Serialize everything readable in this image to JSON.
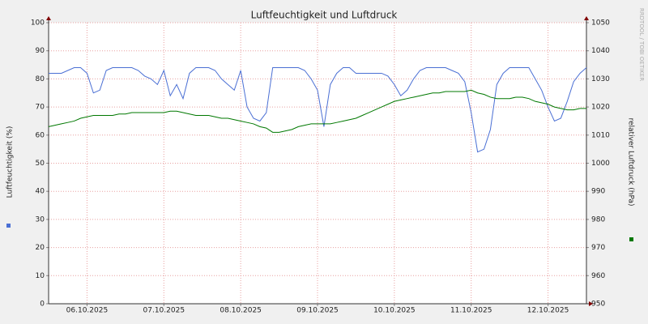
{
  "chart_data": {
    "type": "line",
    "title": "Luftfeuchtigkeit und Luftdruck",
    "y_label": "Luftfeuchtigkeit (%)",
    "y2_label": "relativer Luftdruck (hPa)",
    "watermark": "RRDTOOL / TOBI OETIKER",
    "x": [
      0,
      2,
      4,
      6,
      8,
      10,
      12,
      14,
      16,
      18,
      20,
      22,
      24,
      26,
      28,
      30,
      32,
      34,
      36,
      38,
      40,
      42,
      44,
      46,
      48,
      50,
      52,
      54,
      56,
      58,
      60,
      62,
      64,
      66,
      68,
      70,
      72,
      74,
      76,
      78,
      80,
      82,
      84,
      86,
      88,
      90,
      92,
      94,
      96,
      98,
      100,
      102,
      104,
      106,
      108,
      110,
      112,
      114,
      116,
      118,
      120,
      122,
      124,
      126,
      128,
      130,
      132,
      134,
      136,
      138,
      140,
      142,
      144,
      146,
      148,
      150,
      152,
      154,
      156,
      158,
      160,
      162,
      164,
      166,
      168
    ],
    "xlim": [
      0,
      168
    ],
    "xticks": [
      {
        "value": 12,
        "label": "06.10.2025"
      },
      {
        "value": 36,
        "label": "07.10.2025"
      },
      {
        "value": 60,
        "label": "08.10.2025"
      },
      {
        "value": 84,
        "label": "09.10.2025"
      },
      {
        "value": 108,
        "label": "10.10.2025"
      },
      {
        "value": 132,
        "label": "11.10.2025"
      },
      {
        "value": 156,
        "label": "12.10.2025"
      }
    ],
    "ylim": [
      0,
      100
    ],
    "yticks": [
      0,
      10,
      20,
      30,
      40,
      50,
      60,
      70,
      80,
      90,
      100
    ],
    "y2lim": [
      950,
      1050
    ],
    "y2ticks": [
      950,
      960,
      970,
      980,
      990,
      1000,
      1010,
      1020,
      1030,
      1040,
      1050
    ],
    "grid": true,
    "series": [
      {
        "color": "#4a6fd4",
        "values": [
          82,
          82,
          82,
          83,
          84,
          84,
          82,
          75,
          76,
          83,
          84,
          84,
          84,
          84,
          83,
          81,
          80,
          78,
          83,
          74,
          78,
          73,
          82,
          84,
          84,
          84,
          83,
          80,
          78,
          76,
          83,
          70,
          66,
          65,
          68,
          84,
          84,
          84,
          84,
          84,
          83,
          80,
          76,
          63,
          78,
          82,
          84,
          84,
          82,
          82,
          82,
          82,
          82,
          81,
          78,
          74,
          76,
          80,
          83,
          84,
          84,
          84,
          84,
          83,
          82,
          79,
          68,
          54,
          55,
          62,
          78,
          82,
          84,
          84,
          84,
          84,
          80,
          76,
          70,
          65,
          66,
          72,
          79,
          82,
          84
        ]
      },
      {
        "color": "#007800",
        "axis": "y2",
        "values": [
          1013,
          1013.5,
          1014,
          1014.5,
          1015,
          1016,
          1016.5,
          1017,
          1017,
          1017,
          1017,
          1017.5,
          1017.5,
          1018,
          1018,
          1018,
          1018,
          1018,
          1018,
          1018.5,
          1018.5,
          1018,
          1017.5,
          1017,
          1017,
          1017,
          1016.5,
          1016,
          1016,
          1015.5,
          1015,
          1014.5,
          1014,
          1013,
          1012.5,
          1011,
          1011,
          1011.5,
          1012,
          1013,
          1013.5,
          1014,
          1014,
          1014,
          1014,
          1014.5,
          1015,
          1015.5,
          1016,
          1017,
          1018,
          1019,
          1020,
          1021,
          1022,
          1022.5,
          1023,
          1023.5,
          1024,
          1024.5,
          1025,
          1025,
          1025.5,
          1025.5,
          1025.5,
          1025.5,
          1026,
          1025,
          1024.5,
          1023.5,
          1023,
          1023,
          1023,
          1023.5,
          1023.5,
          1023,
          1022,
          1021.5,
          1021,
          1020,
          1019.5,
          1019,
          1019,
          1019.5,
          1019.5
        ]
      }
    ]
  }
}
